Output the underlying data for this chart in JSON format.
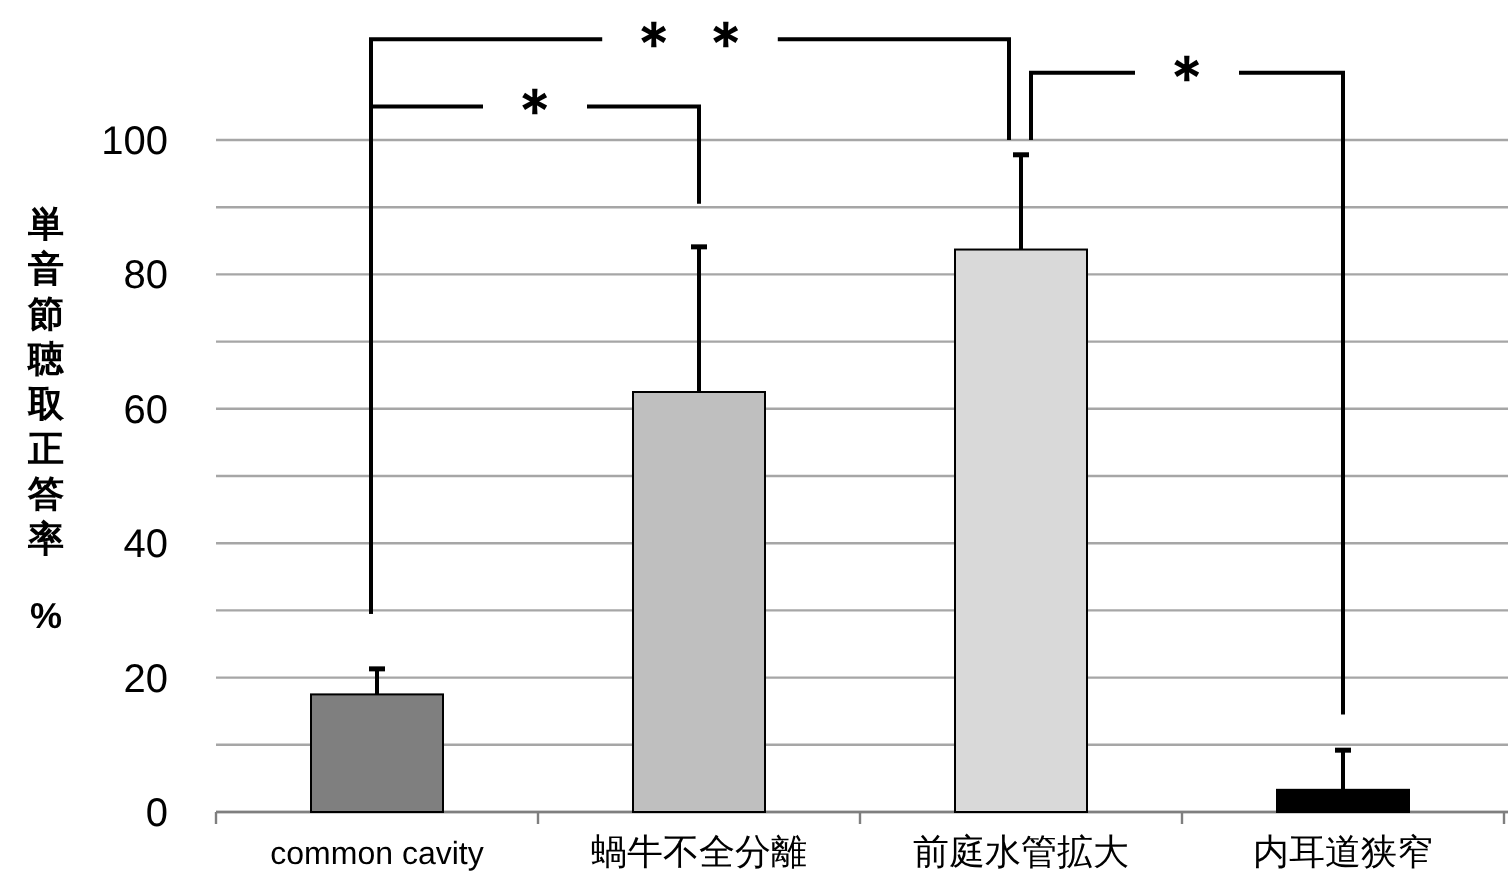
{
  "chart_data": {
    "type": "bar",
    "ylabel": "単音節聴取正答率 %",
    "categories": [
      "common cavity",
      "蝸牛不全分離",
      "前庭水管拡大",
      "内耳道狭窄"
    ],
    "values": [
      17.5,
      62.5,
      83.7,
      3.3
    ],
    "colors": [
      "#7f7f7f",
      "#bfbfbf",
      "#d9d9d9",
      "#000000"
    ],
    "errors": [
      [
        17.5,
        21.3
      ],
      [
        62.5,
        84.1
      ],
      [
        83.7,
        97.8
      ],
      [
        3.3,
        9.2
      ]
    ],
    "ylim": [
      0,
      100
    ],
    "yticks": [
      0,
      {
        "value": 10,
        "label": null
      },
      20,
      {
        "value": 30,
        "label": null
      },
      40,
      {
        "value": 50,
        "label": null
      },
      60,
      {
        "value": 70,
        "label": null
      },
      80,
      {
        "value": 90,
        "label": null
      },
      100
    ],
    "grid": "y",
    "annotations": [
      "＊",
      "＊ ＊",
      "＊"
    ]
  }
}
